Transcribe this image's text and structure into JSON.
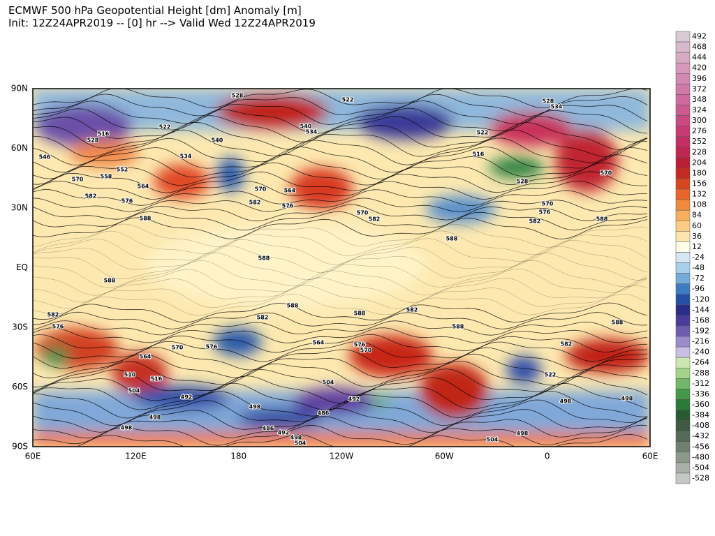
{
  "header": {
    "title": "ECMWF 500 hPa Geopotential Height [dm] Anomaly [m]",
    "subtitle": "Init: 12Z24APR2019 -- [0] hr --> Valid Wed 12Z24APR2019"
  },
  "lat_labels": [
    "90N",
    "60N",
    "30N",
    "EQ",
    "30S",
    "60S",
    "90S"
  ],
  "lon_labels": [
    "60E",
    "120E",
    "180",
    "120W",
    "60W",
    "0",
    "60E"
  ],
  "colorbar": [
    {
      "label": "492",
      "color": "#d9c9d3"
    },
    {
      "label": "468",
      "color": "#d7b9cb"
    },
    {
      "label": "444",
      "color": "#d7a9c3"
    },
    {
      "label": "420",
      "color": "#d699bb"
    },
    {
      "label": "396",
      "color": "#d489b3"
    },
    {
      "label": "372",
      "color": "#d279a8"
    },
    {
      "label": "348",
      "color": "#d0699d"
    },
    {
      "label": "324",
      "color": "#ce5990"
    },
    {
      "label": "300",
      "color": "#cc4983"
    },
    {
      "label": "276",
      "color": "#c83a74"
    },
    {
      "label": "252",
      "color": "#c42e64"
    },
    {
      "label": "228",
      "color": "#c02650"
    },
    {
      "label": "204",
      "color": "#bc1e36"
    },
    {
      "label": "180",
      "color": "#c42a20"
    },
    {
      "label": "156",
      "color": "#d8461e"
    },
    {
      "label": "132",
      "color": "#ea6628"
    },
    {
      "label": "108",
      "color": "#f28a3c"
    },
    {
      "label": "84",
      "color": "#f8ae5c"
    },
    {
      "label": "60",
      "color": "#fccc84"
    },
    {
      "label": "36",
      "color": "#fde6ae"
    },
    {
      "label": "12",
      "color": "#fffce8"
    },
    {
      "label": "-24",
      "color": "#d4e8f4"
    },
    {
      "label": "-48",
      "color": "#a8d0ea"
    },
    {
      "label": "-72",
      "color": "#74acdc"
    },
    {
      "label": "-96",
      "color": "#3c7cc4"
    },
    {
      "label": "-120",
      "color": "#2650a8"
    },
    {
      "label": "-144",
      "color": "#2a2c8a"
    },
    {
      "label": "-168",
      "color": "#4a3a9c"
    },
    {
      "label": "-192",
      "color": "#6e5cb2"
    },
    {
      "label": "-216",
      "color": "#9c8ccc"
    },
    {
      "label": "-240",
      "color": "#c8c0e4"
    },
    {
      "label": "-264",
      "color": "#cce8b0"
    },
    {
      "label": "-288",
      "color": "#a2d488"
    },
    {
      "label": "-312",
      "color": "#72b868"
    },
    {
      "label": "-336",
      "color": "#44984a"
    },
    {
      "label": "-360",
      "color": "#2a7a38"
    },
    {
      "label": "-384",
      "color": "#2a5a32"
    },
    {
      "label": "-408",
      "color": "#3e5a44"
    },
    {
      "label": "-432",
      "color": "#566a5a"
    },
    {
      "label": "-456",
      "color": "#708070"
    },
    {
      "label": "-480",
      "color": "#8c988c"
    },
    {
      "label": "-504",
      "color": "#a8b0a8"
    },
    {
      "label": "-528",
      "color": "#c4c8c4"
    }
  ],
  "contour_labels": [
    "528",
    "522",
    "528",
    "534",
    "516",
    "528",
    "522",
    "540",
    "534",
    "540",
    "534",
    "546",
    "552",
    "570",
    "558",
    "564",
    "582",
    "576",
    "588",
    "570",
    "564",
    "582",
    "576",
    "570",
    "582",
    "516",
    "522",
    "528",
    "570",
    "576",
    "582",
    "588",
    "570",
    "588",
    "588",
    "588",
    "588",
    "588",
    "582",
    "582",
    "588",
    "588",
    "582",
    "576",
    "576",
    "570",
    "582",
    "564",
    "564",
    "570",
    "576",
    "510",
    "516",
    "504",
    "504",
    "492",
    "498",
    "492",
    "486",
    "498",
    "498",
    "498",
    "498",
    "522",
    "498",
    "504",
    "504",
    "498",
    "492",
    "486"
  ]
}
